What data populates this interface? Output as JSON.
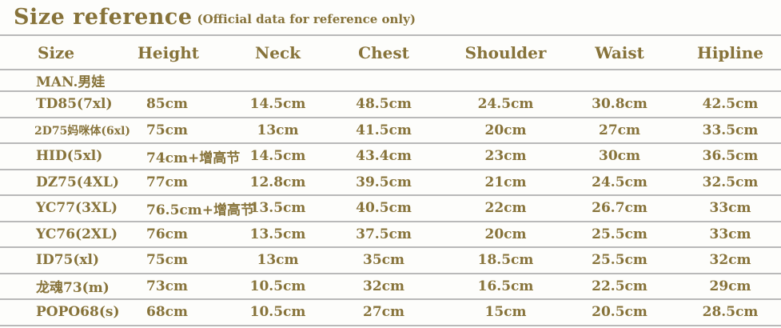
{
  "title": {
    "main": "Size reference",
    "subtitle": "(Official data for reference only)"
  },
  "chart_data": {
    "type": "table",
    "title": "Size reference",
    "subtitle": "(Official data for reference only)",
    "columns": [
      "Size",
      "Height",
      "Neck",
      "Chest",
      "Shoulder",
      "Waist",
      "Hipline"
    ],
    "section_label": "MAN.男娃",
    "rows": [
      [
        "TD85(7xl)",
        "85cm",
        "14.5cm",
        "48.5cm",
        "24.5cm",
        "30.8cm",
        "42.5cm"
      ],
      [
        "2D75妈咪体(6xl)",
        "75cm",
        "13cm",
        "41.5cm",
        "20cm",
        "27cm",
        "33.5cm"
      ],
      [
        "HID(5xl)",
        "74cm+增高节",
        "14.5cm",
        "43.4cm",
        "23cm",
        "30cm",
        "36.5cm"
      ],
      [
        "DZ75(4XL)",
        "77cm",
        "12.8cm",
        "39.5cm",
        "21cm",
        "24.5cm",
        "32.5cm"
      ],
      [
        "YC77(3XL)",
        "76.5cm+增高节",
        "13.5cm",
        "40.5cm",
        "22cm",
        "26.7cm",
        "33cm"
      ],
      [
        "YC76(2XL)",
        "76cm",
        "13.5cm",
        "37.5cm",
        "20cm",
        "25.5cm",
        "33cm"
      ],
      [
        "ID75(xl)",
        "75cm",
        "13cm",
        "35cm",
        "18.5cm",
        "25.5cm",
        "32cm"
      ],
      [
        "龙魂73(m)",
        "73cm",
        "10.5cm",
        "32cm",
        "16.5cm",
        "22.5cm",
        "29cm"
      ],
      [
        "POPO68(s)",
        "68cm",
        "10.5cm",
        "27cm",
        "15cm",
        "20.5cm",
        "28.5cm"
      ]
    ],
    "units": "cm",
    "layout_hints": {
      "grid": "horizontal rules only, no vertical rules",
      "numeric_columns_alignment": "center",
      "size_column_alignment": "left"
    }
  },
  "colors": {
    "text": "#87733a",
    "line": "#b9b9b9",
    "background": "#fdfdfb"
  }
}
